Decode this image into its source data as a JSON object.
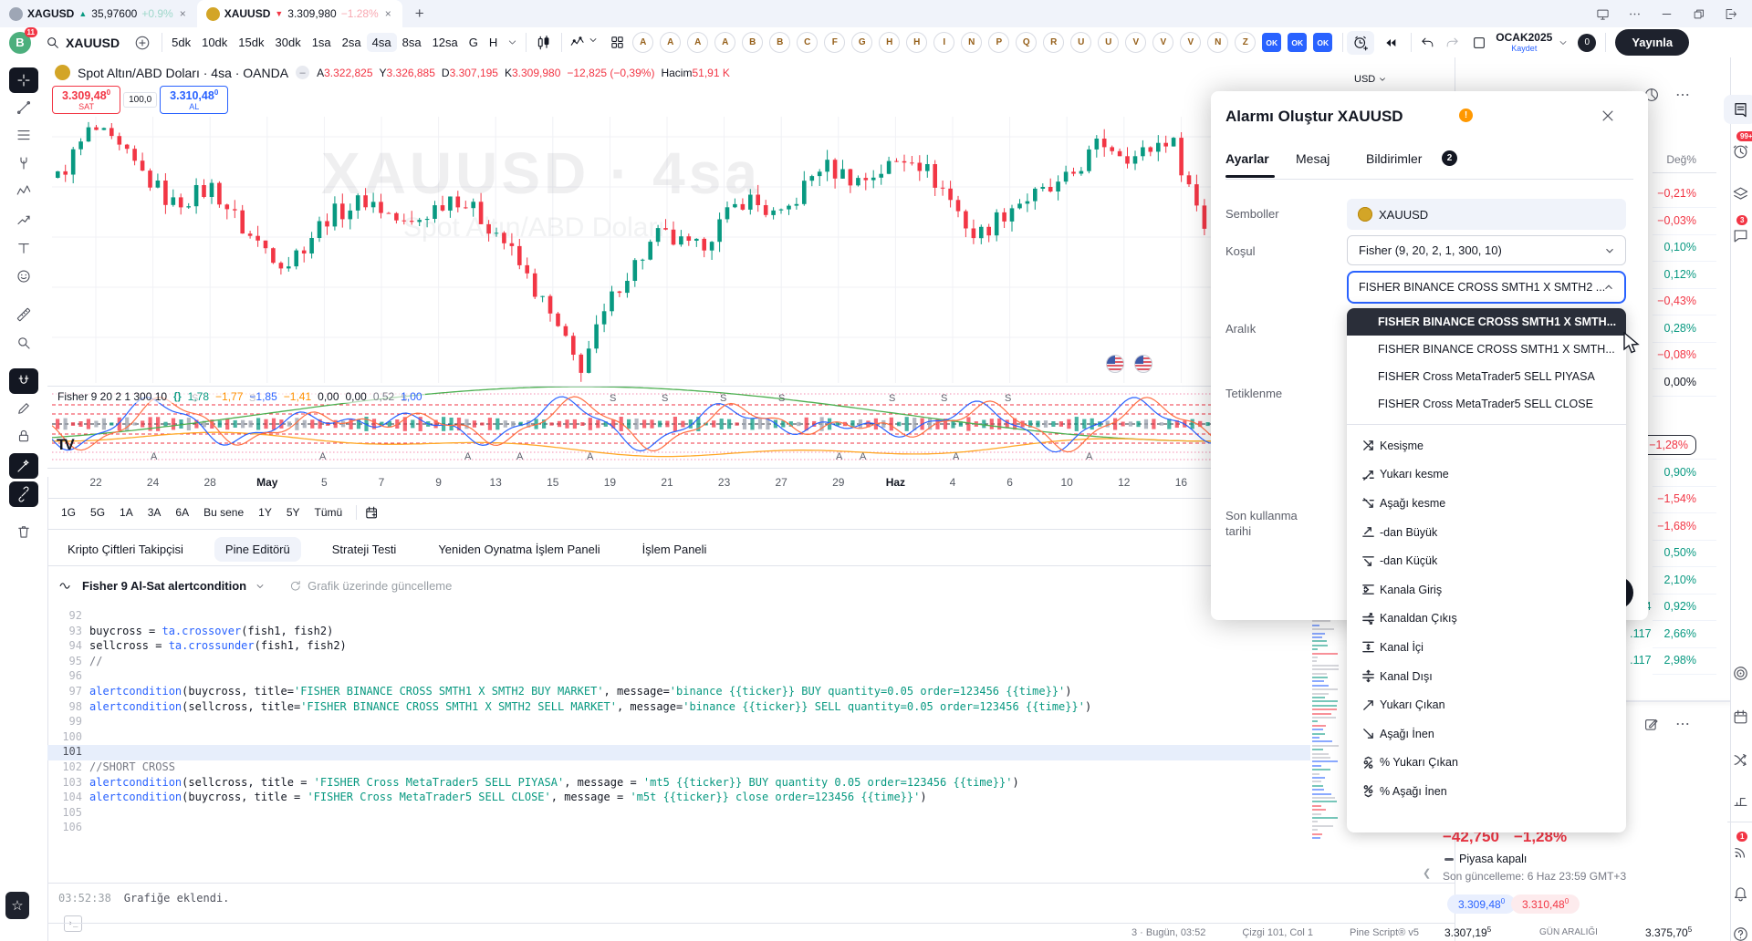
{
  "colors": {
    "red": "#f23645",
    "green": "#089981",
    "blue": "#2962ff",
    "orange": "#ff9100",
    "text": "#131722",
    "muted": "#787b86"
  },
  "window_tabs": {
    "tabs": [
      {
        "symbol": "XAGUSD",
        "arrow": "▲",
        "price": "35,97600",
        "change": "+0.9%",
        "direction": "up",
        "active": false
      },
      {
        "symbol": "XAUUSD",
        "arrow": "▼",
        "price": "3.309,980",
        "change": "−1.28%",
        "direction": "down",
        "active": true
      }
    ]
  },
  "toolbar": {
    "avatar": "B",
    "avatar_badge": "11",
    "symbol": "XAUUSD",
    "timeframes": [
      "5dk",
      "10dk",
      "15dk",
      "30dk",
      "1sa",
      "2sa",
      "4sa",
      "8sa",
      "12sa",
      "G",
      "H"
    ],
    "selected_timeframe": "4sa",
    "letter_buttons": [
      "A",
      "A",
      "A",
      "A",
      "B",
      "B",
      "C",
      "F",
      "G",
      "H",
      "H",
      "I",
      "N",
      "P",
      "Q",
      "R",
      "U",
      "U",
      "V",
      "V",
      "V",
      "N",
      "Z"
    ],
    "ok_buttons": [
      "OK",
      "OK",
      "OK"
    ],
    "layout_name": "OCAK2025",
    "save_label": "Kaydet",
    "cloud_count": "0",
    "publish_label": "Yayınla"
  },
  "chart": {
    "title": "Spot Altın/ABD Doları · 4sa · OANDA",
    "ohlc": [
      [
        "A",
        "3.322,825"
      ],
      [
        "Y",
        "3.326,885"
      ],
      [
        "D",
        "3.307,195"
      ],
      [
        "K",
        "3.309,980"
      ]
    ],
    "change": "−12,825 (−0,39%)",
    "volume_label": "Hacim",
    "volume_value": "51,91 K",
    "sell_price": "3.309,48",
    "sell_sup": "0",
    "sell_label": "SAT",
    "spread": "100,0",
    "buy_price": "3.310,48",
    "buy_sup": "0",
    "buy_label": "AL",
    "currency": "USD",
    "dates": [
      "22",
      "24",
      "28",
      "May",
      "5",
      "7",
      "9",
      "13",
      "15",
      "19",
      "21",
      "23",
      "27",
      "29",
      "Haz",
      "4",
      "6",
      "10",
      "12",
      "16"
    ],
    "bold_dates": [
      "May",
      "Haz"
    ]
  },
  "fisher": {
    "label": "Fisher 9 20 2 1 300 10",
    "values": [
      [
        "1,78",
        "green"
      ],
      [
        "−1,77",
        "orange"
      ],
      [
        "−1,85",
        "blue"
      ],
      [
        "−1,41",
        "orange"
      ],
      [
        "0,00",
        "text"
      ],
      [
        "0,00",
        "text"
      ],
      [
        "0,52",
        "muted"
      ],
      [
        "1,00",
        "blue"
      ]
    ],
    "s_positions": [
      0.12,
      0.17,
      0.3,
      0.48,
      0.525,
      0.575,
      0.625,
      0.72,
      0.765,
      0.82
    ],
    "a_positions": [
      0.085,
      0.23,
      0.355,
      0.4,
      0.46,
      0.675,
      0.695,
      0.775,
      0.89
    ]
  },
  "range_bar": {
    "items": [
      "1G",
      "5G",
      "1A",
      "3A",
      "6A",
      "Bu sene",
      "1Y",
      "5Y",
      "Tümü"
    ]
  },
  "panel_tabs": {
    "items": [
      "Kripto Çiftleri Takipçisi",
      "Pine Editörü",
      "Strateji Testi",
      "Yeniden Oynatma İşlem Paneli",
      "İşlem Paneli"
    ],
    "active": "Pine Editörü"
  },
  "pine": {
    "script_name": "Fisher 9 Al-Sat alertcondition",
    "update_label": "Grafik üzerinde güncelleme",
    "console_time": "03:52:38",
    "console_message": "Grafiğe eklendi.",
    "status_items": [
      "3 · Bugün, 03:52",
      "Çizgi 101, Col 1",
      "Pine Script® v5"
    ],
    "lines": [
      {
        "n": "92",
        "tokens": []
      },
      {
        "n": "93",
        "tokens": [
          [
            "p",
            "buycross = "
          ],
          [
            "f",
            "ta.crossover"
          ],
          [
            "p",
            "(fish1, fish2)"
          ]
        ]
      },
      {
        "n": "94",
        "tokens": [
          [
            "p",
            "sellcross = "
          ],
          [
            "f",
            "ta.crossunder"
          ],
          [
            "p",
            "(fish1, fish2)"
          ]
        ]
      },
      {
        "n": "95",
        "tokens": [
          [
            "c",
            "//"
          ]
        ]
      },
      {
        "n": "96",
        "tokens": []
      },
      {
        "n": "97",
        "tokens": [
          [
            "f",
            "alertcondition"
          ],
          [
            "p",
            "(buycross, title="
          ],
          [
            "s",
            "'FISHER BINANCE CROSS SMTH1 X SMTH2 BUY MARKET'"
          ],
          [
            "p",
            ", message="
          ],
          [
            "s",
            "'binance {{ticker}} BUY quantity=0.05 order=123456 {{time}}'"
          ],
          [
            "p",
            ")"
          ]
        ]
      },
      {
        "n": "98",
        "tokens": [
          [
            "f",
            "alertcondition"
          ],
          [
            "p",
            "(sellcross, title="
          ],
          [
            "s",
            "'FISHER BINANCE CROSS SMTH1 X SMTH2 SELL MARKET'"
          ],
          [
            "p",
            ", message="
          ],
          [
            "s",
            "'binance {{ticker}} SELL quantity=0.05 order=123456 {{time}}'"
          ],
          [
            "p",
            ")"
          ]
        ]
      },
      {
        "n": "99",
        "tokens": []
      },
      {
        "n": "100",
        "tokens": []
      },
      {
        "n": "101",
        "tokens": [],
        "highlight": true
      },
      {
        "n": "102",
        "tokens": [
          [
            "c",
            "//SHORT CROSS"
          ]
        ]
      },
      {
        "n": "103",
        "tokens": [
          [
            "f",
            "alertcondition"
          ],
          [
            "p",
            "(sellcross, title = "
          ],
          [
            "s",
            "'FISHER Cross MetaTrader5 SELL PIYASA'"
          ],
          [
            "p",
            ", message = "
          ],
          [
            "s",
            "'mt5 {{ticker}} BUY quantity 0.05 order=123456 {{time}}'"
          ],
          [
            "p",
            ")"
          ]
        ]
      },
      {
        "n": "104",
        "tokens": [
          [
            "f",
            "alertcondition"
          ],
          [
            "p",
            "(buycross, title = "
          ],
          [
            "s",
            "'FISHER Cross MetaTrader5 SELL CLOSE'"
          ],
          [
            "p",
            ", message = "
          ],
          [
            "s",
            "'m5t {{ticker}} close order=123456 {{time}}'"
          ],
          [
            "p",
            ")"
          ]
        ]
      },
      {
        "n": "105",
        "tokens": []
      },
      {
        "n": "106",
        "tokens": []
      }
    ]
  },
  "dialog": {
    "title": "Alarmı Oluştur XAUUSD",
    "tabs": [
      "Ayarlar",
      "Mesaj",
      "Bildirimler"
    ],
    "active_tab": "Ayarlar",
    "notifications_badge": "2",
    "labels": {
      "symbol": "Semboller",
      "condition": "Koşul",
      "interval": "Aralık",
      "trigger": "Tetiklenme",
      "expiration_1": "Son kullanma",
      "expiration_2": "tarihi"
    },
    "symbol_value": "XAUUSD",
    "condition_value": "Fisher (9, 20, 2, 1, 300, 10)",
    "subcondition_value": "FISHER BINANCE CROSS SMTH1 X SMTH2 ...",
    "options": [
      "FISHER BINANCE CROSS SMTH1 X SMTH...",
      "FISHER BINANCE CROSS SMTH1 X SMTH...",
      "FISHER Cross MetaTrader5 SELL PIYASA",
      "FISHER Cross MetaTrader5 SELL CLOSE"
    ],
    "selected_option_index": 0,
    "operator_options": [
      {
        "icon": "crossing",
        "label": "Kesişme"
      },
      {
        "icon": "crossing-up",
        "label": "Yukarı kesme"
      },
      {
        "icon": "crossing-down",
        "label": "Aşağı kesme"
      },
      {
        "icon": "greater",
        "label": "-dan Büyük"
      },
      {
        "icon": "less",
        "label": "-dan Küçük"
      },
      {
        "icon": "channel-enter",
        "label": "Kanala Giriş"
      },
      {
        "icon": "channel-exit",
        "label": "Kanaldan Çıkış"
      },
      {
        "icon": "channel-in",
        "label": "Kanal İçi"
      },
      {
        "icon": "channel-out",
        "label": "Kanal Dışı"
      },
      {
        "icon": "moving-up",
        "label": "Yukarı Çıkan"
      },
      {
        "icon": "moving-down",
        "label": "Aşağı İnen"
      },
      {
        "icon": "pct-up",
        "label": "% Yukarı Çıkan"
      },
      {
        "icon": "pct-down",
        "label": "% Aşağı İnen"
      }
    ]
  },
  "watchlist": {
    "column_header": "Değ%",
    "rows": [
      {
        "price": "",
        "pct": "−0,21%",
        "c": "red"
      },
      {
        "price": "",
        "pct": "−0,03%",
        "c": "red"
      },
      {
        "price": "",
        "pct": "0,10%",
        "c": "green"
      },
      {
        "price": "",
        "pct": "0,12%",
        "c": "green"
      },
      {
        "price": "",
        "pct": "−0,43%",
        "c": "red"
      },
      {
        "price": "",
        "pct": "0,28%",
        "c": "green"
      },
      {
        "price": "",
        "pct": "−0,08%",
        "c": "red"
      },
      {
        "price": "",
        "pct": "0,00%",
        "c": "text"
      },
      {
        "price": "",
        "pct": "−1,28%",
        "c": "red",
        "boxed": true,
        "gap": 40
      },
      {
        "price": "",
        "pct": "0,90%",
        "c": "green"
      },
      {
        "price": "",
        "pct": "−1,54%",
        "c": "red"
      },
      {
        "price": "",
        "pct": "−1,68%",
        "c": "red"
      },
      {
        "price": "",
        "pct": "0,50%",
        "c": "green"
      },
      {
        "price": "",
        "pct": "2,10%",
        "c": "green"
      },
      {
        "price": ".314",
        "pct": "0,92%",
        "c": "green"
      },
      {
        "price": ".117",
        "pct": "2,66%",
        "c": "green"
      },
      {
        "price": ".117",
        "pct": "2,98%",
        "c": "green"
      }
    ],
    "summary": {
      "change_abs": "−42,750",
      "change_pct": "−1,28%",
      "market_status": "Piyasa kapalı",
      "last_update": "Son güncelleme: 6 Haz 23:59 GMT+3",
      "bid": "3.309,48",
      "bid_sup": "0",
      "ask": "3.310,48",
      "ask_sup": "0",
      "day_low": "3.307,19",
      "day_low_sup": "5",
      "range_label": "GÜN ARALIĞI",
      "day_high": "3.375,70",
      "day_high_sup": "5"
    }
  },
  "right_rail": {
    "badges": {
      "alerts": "99+",
      "chat": "3",
      "news": "1"
    }
  },
  "chart_data": {
    "type": "candlestick",
    "symbol": "XAUUSD",
    "timeframe": "4sa",
    "y_range": [
      3110,
      3450
    ],
    "waypoints": [
      [
        0,
        3372
      ],
      [
        0.03,
        3436
      ],
      [
        0.06,
        3398
      ],
      [
        0.1,
        3338
      ],
      [
        0.135,
        3360
      ],
      [
        0.165,
        3300
      ],
      [
        0.2,
        3262
      ],
      [
        0.235,
        3322
      ],
      [
        0.27,
        3345
      ],
      [
        0.305,
        3308
      ],
      [
        0.345,
        3352
      ],
      [
        0.385,
        3300
      ],
      [
        0.42,
        3220
      ],
      [
        0.455,
        3128
      ],
      [
        0.49,
        3238
      ],
      [
        0.525,
        3300
      ],
      [
        0.555,
        3278
      ],
      [
        0.6,
        3348
      ],
      [
        0.63,
        3318
      ],
      [
        0.665,
        3388
      ],
      [
        0.7,
        3368
      ],
      [
        0.745,
        3402
      ],
      [
        0.775,
        3352
      ],
      [
        0.8,
        3295
      ],
      [
        0.835,
        3340
      ],
      [
        0.875,
        3360
      ],
      [
        0.91,
        3418
      ],
      [
        0.94,
        3398
      ],
      [
        0.97,
        3425
      ],
      [
        1,
        3312
      ]
    ]
  }
}
